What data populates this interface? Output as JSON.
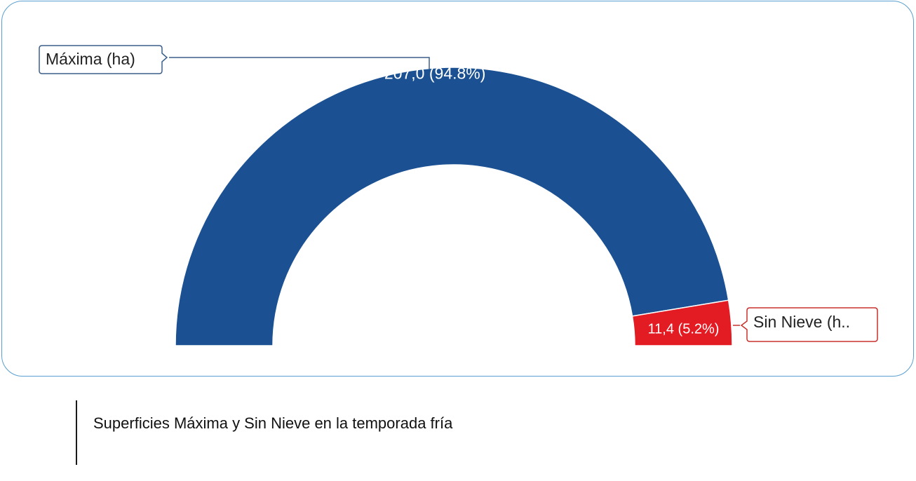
{
  "caption": "Superficies Máxima y Sin Nieve en la temporada fría",
  "chart_data": {
    "type": "pie",
    "variant": "semi-donut",
    "title": "",
    "slices": [
      {
        "name": "Máxima (ha)",
        "legend_label": "Máxima (ha)",
        "value": 207.0,
        "percent": 94.8,
        "data_label": "207,0 (94.8%)",
        "color": "#1b5192"
      },
      {
        "name": "Sin Nieve (ha)",
        "legend_label": "Sin Nieve (h..",
        "value": 11.4,
        "percent": 5.2,
        "data_label": "11,4 (5.2%)",
        "color": "#e31b23"
      }
    ],
    "label_box_border_colors": [
      "#3a5f8a",
      "#c9302c"
    ],
    "frame_border_color": "#5a9fd0"
  }
}
